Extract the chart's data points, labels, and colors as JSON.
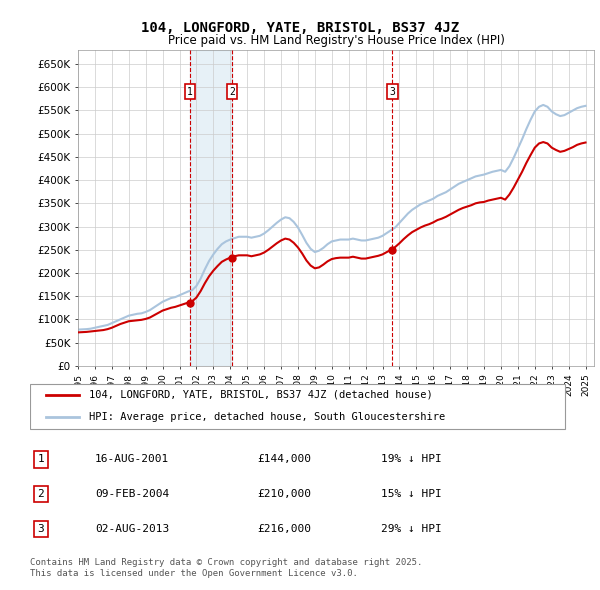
{
  "title": "104, LONGFORD, YATE, BRISTOL, BS37 4JZ",
  "subtitle": "Price paid vs. HM Land Registry's House Price Index (HPI)",
  "ylabel_ticks": [
    "£0",
    "£50K",
    "£100K",
    "£150K",
    "£200K",
    "£250K",
    "£300K",
    "£350K",
    "£400K",
    "£450K",
    "£500K",
    "£550K",
    "£600K",
    "£650K"
  ],
  "ytick_values": [
    0,
    50000,
    100000,
    150000,
    200000,
    250000,
    300000,
    350000,
    400000,
    450000,
    500000,
    550000,
    600000,
    650000
  ],
  "ylim": [
    0,
    680000
  ],
  "background_color": "#ffffff",
  "plot_bg_color": "#ffffff",
  "grid_color": "#cccccc",
  "hpi_color": "#aac4dd",
  "price_color": "#cc0000",
  "sale_marker_color": "#cc0000",
  "vline_color": "#cc0000",
  "shade_color": "#d0e4f0",
  "legend_label_price": "104, LONGFORD, YATE, BRISTOL, BS37 4JZ (detached house)",
  "legend_label_hpi": "HPI: Average price, detached house, South Gloucestershire",
  "sales": [
    {
      "num": 1,
      "date_idx": 2001.62,
      "price": 144000,
      "label": "16-AUG-2001",
      "pct": "19%",
      "dir": "↓"
    },
    {
      "num": 2,
      "date_idx": 2004.11,
      "price": 210000,
      "label": "09-FEB-2004",
      "pct": "15%",
      "dir": "↓"
    },
    {
      "num": 3,
      "date_idx": 2013.58,
      "price": 216000,
      "label": "02-AUG-2013",
      "pct": "29%",
      "dir": "↓"
    }
  ],
  "footnote1": "Contains HM Land Registry data © Crown copyright and database right 2025.",
  "footnote2": "This data is licensed under the Open Government Licence v3.0.",
  "hpi_data": {
    "years": [
      1995.0,
      1995.25,
      1995.5,
      1995.75,
      1996.0,
      1996.25,
      1996.5,
      1996.75,
      1997.0,
      1997.25,
      1997.5,
      1997.75,
      1998.0,
      1998.25,
      1998.5,
      1998.75,
      1999.0,
      1999.25,
      1999.5,
      1999.75,
      2000.0,
      2000.25,
      2000.5,
      2000.75,
      2001.0,
      2001.25,
      2001.5,
      2001.75,
      2002.0,
      2002.25,
      2002.5,
      2002.75,
      2003.0,
      2003.25,
      2003.5,
      2003.75,
      2004.0,
      2004.25,
      2004.5,
      2004.75,
      2005.0,
      2005.25,
      2005.5,
      2005.75,
      2006.0,
      2006.25,
      2006.5,
      2006.75,
      2007.0,
      2007.25,
      2007.5,
      2007.75,
      2008.0,
      2008.25,
      2008.5,
      2008.75,
      2009.0,
      2009.25,
      2009.5,
      2009.75,
      2010.0,
      2010.25,
      2010.5,
      2010.75,
      2011.0,
      2011.25,
      2011.5,
      2011.75,
      2012.0,
      2012.25,
      2012.5,
      2012.75,
      2013.0,
      2013.25,
      2013.5,
      2013.75,
      2014.0,
      2014.25,
      2014.5,
      2014.75,
      2015.0,
      2015.25,
      2015.5,
      2015.75,
      2016.0,
      2016.25,
      2016.5,
      2016.75,
      2017.0,
      2017.25,
      2017.5,
      2017.75,
      2018.0,
      2018.25,
      2018.5,
      2018.75,
      2019.0,
      2019.25,
      2019.5,
      2019.75,
      2020.0,
      2020.25,
      2020.5,
      2020.75,
      2021.0,
      2021.25,
      2021.5,
      2021.75,
      2022.0,
      2022.25,
      2022.5,
      2022.75,
      2023.0,
      2023.25,
      2023.5,
      2023.75,
      2024.0,
      2024.25,
      2024.5,
      2024.75,
      2025.0
    ],
    "values": [
      78000,
      78500,
      79000,
      80000,
      82000,
      84000,
      86000,
      88000,
      92000,
      96000,
      100000,
      104000,
      108000,
      110000,
      112000,
      113000,
      116000,
      120000,
      126000,
      132000,
      138000,
      142000,
      146000,
      148000,
      152000,
      156000,
      160000,
      163000,
      172000,
      188000,
      208000,
      226000,
      240000,
      252000,
      262000,
      268000,
      272000,
      275000,
      278000,
      278000,
      278000,
      276000,
      278000,
      280000,
      285000,
      292000,
      300000,
      308000,
      315000,
      320000,
      318000,
      310000,
      298000,
      282000,
      265000,
      252000,
      245000,
      248000,
      254000,
      262000,
      268000,
      270000,
      272000,
      272000,
      272000,
      274000,
      272000,
      270000,
      270000,
      272000,
      274000,
      276000,
      280000,
      286000,
      292000,
      298000,
      308000,
      318000,
      328000,
      336000,
      342000,
      348000,
      352000,
      356000,
      360000,
      366000,
      370000,
      374000,
      380000,
      386000,
      392000,
      396000,
      400000,
      404000,
      408000,
      410000,
      412000,
      415000,
      418000,
      420000,
      422000,
      418000,
      430000,
      448000,
      468000,
      488000,
      510000,
      530000,
      548000,
      558000,
      562000,
      558000,
      548000,
      542000,
      538000,
      540000,
      545000,
      550000,
      555000,
      558000,
      560000
    ]
  },
  "price_data": {
    "years": [
      1995.0,
      1995.25,
      1995.5,
      1995.75,
      1996.0,
      1996.25,
      1996.5,
      1996.75,
      1997.0,
      1997.25,
      1997.5,
      1997.75,
      1998.0,
      1998.25,
      1998.5,
      1998.75,
      1999.0,
      1999.25,
      1999.5,
      1999.75,
      2000.0,
      2000.25,
      2000.5,
      2000.75,
      2001.0,
      2001.25,
      2001.5,
      2001.75,
      2002.0,
      2002.25,
      2002.5,
      2002.75,
      2003.0,
      2003.25,
      2003.5,
      2003.75,
      2004.0,
      2004.25,
      2004.5,
      2004.75,
      2005.0,
      2005.25,
      2005.5,
      2005.75,
      2006.0,
      2006.25,
      2006.5,
      2006.75,
      2007.0,
      2007.25,
      2007.5,
      2007.75,
      2008.0,
      2008.25,
      2008.5,
      2008.75,
      2009.0,
      2009.25,
      2009.5,
      2009.75,
      2010.0,
      2010.25,
      2010.5,
      2010.75,
      2011.0,
      2011.25,
      2011.5,
      2011.75,
      2012.0,
      2012.25,
      2012.5,
      2012.75,
      2013.0,
      2013.25,
      2013.5,
      2013.75,
      2014.0,
      2014.25,
      2014.5,
      2014.75,
      2015.0,
      2015.25,
      2015.5,
      2015.75,
      2016.0,
      2016.25,
      2016.5,
      2016.75,
      2017.0,
      2017.25,
      2017.5,
      2017.75,
      2018.0,
      2018.25,
      2018.5,
      2018.75,
      2019.0,
      2019.25,
      2019.5,
      2019.75,
      2020.0,
      2020.25,
      2020.5,
      2020.75,
      2021.0,
      2021.25,
      2021.5,
      2021.75,
      2022.0,
      2022.25,
      2022.5,
      2022.75,
      2023.0,
      2023.25,
      2023.5,
      2023.75,
      2024.0,
      2024.25,
      2024.5,
      2024.75,
      2025.0
    ],
    "values": [
      72000,
      72500,
      73000,
      74000,
      75000,
      76000,
      77000,
      79000,
      82000,
      86000,
      90000,
      93000,
      96000,
      97000,
      98000,
      99000,
      101000,
      104000,
      109000,
      114000,
      119000,
      122000,
      125000,
      127000,
      130000,
      133000,
      136000,
      139000,
      147000,
      161000,
      178000,
      193000,
      205000,
      215000,
      224000,
      229000,
      233000,
      236000,
      238000,
      238000,
      238000,
      236000,
      238000,
      240000,
      244000,
      250000,
      257000,
      264000,
      270000,
      274000,
      272000,
      265000,
      255000,
      242000,
      227000,
      216000,
      210000,
      212000,
      218000,
      225000,
      230000,
      232000,
      233000,
      233000,
      233000,
      235000,
      233000,
      231000,
      231000,
      233000,
      235000,
      237000,
      240000,
      245000,
      250000,
      256000,
      264000,
      273000,
      281000,
      288000,
      293000,
      298000,
      302000,
      305000,
      309000,
      314000,
      317000,
      321000,
      326000,
      331000,
      336000,
      340000,
      343000,
      346000,
      350000,
      352000,
      353000,
      356000,
      358000,
      360000,
      362000,
      358000,
      369000,
      384000,
      401000,
      418000,
      437000,
      454000,
      470000,
      479000,
      482000,
      479000,
      470000,
      465000,
      461000,
      463000,
      467000,
      471000,
      476000,
      479000,
      481000
    ]
  }
}
